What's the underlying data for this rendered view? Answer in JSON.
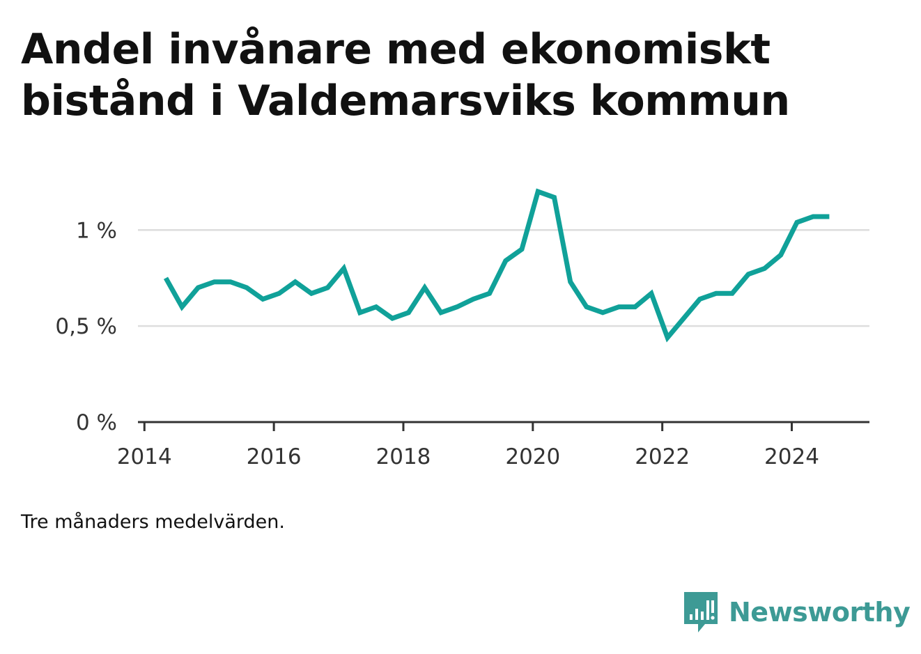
{
  "title": "Andel invånare med ekonomiskt bistånd i Valdemarsviks kommun",
  "note": "Tre månaders medelvärden.",
  "brand": {
    "name": "Newsworthy",
    "icon": "newsworthy-bar-chart-icon"
  },
  "colors": {
    "line": "#10a199",
    "grid": "#dddddd",
    "axis": "#333333",
    "brand": "#3d9a95"
  },
  "chart_data": {
    "type": "line",
    "title": "Andel invånare med ekonomiskt bistånd i Valdemarsviks kommun",
    "xlabel": "",
    "ylabel": "",
    "xlim": [
      2013.9,
      2025.2
    ],
    "ylim": [
      0,
      1.4
    ],
    "x_ticks": [
      2014,
      2016,
      2018,
      2020,
      2022,
      2024
    ],
    "x_tick_labels": [
      "2014",
      "2016",
      "2018",
      "2020",
      "2022",
      "2024"
    ],
    "y_ticks": [
      0,
      0.5,
      1
    ],
    "y_tick_labels": [
      "0 %",
      "0,5 %",
      "1 %"
    ],
    "grid": true,
    "series": [
      {
        "x": [
          2014.33,
          2014.58,
          2014.83,
          2015.08,
          2015.33,
          2015.58,
          2015.83,
          2016.08,
          2016.33,
          2016.58,
          2016.83,
          2017.08,
          2017.33,
          2017.58,
          2017.83,
          2018.08,
          2018.33,
          2018.58,
          2018.83,
          2019.08,
          2019.33,
          2019.58,
          2019.83,
          2020.08,
          2020.33,
          2020.58,
          2020.83,
          2021.08,
          2021.33,
          2021.58,
          2021.83,
          2022.08,
          2022.33,
          2022.58,
          2022.83,
          2023.08,
          2023.33,
          2023.58,
          2023.83,
          2024.08,
          2024.33,
          2024.58
        ],
        "values": [
          0.75,
          0.6,
          0.7,
          0.73,
          0.73,
          0.7,
          0.64,
          0.67,
          0.73,
          0.67,
          0.7,
          0.8,
          0.57,
          0.6,
          0.54,
          0.57,
          0.7,
          0.57,
          0.6,
          0.64,
          0.67,
          0.84,
          0.9,
          1.2,
          1.17,
          0.73,
          0.6,
          0.57,
          0.6,
          0.6,
          0.67,
          0.44,
          0.54,
          0.64,
          0.67,
          0.67,
          0.77,
          0.8,
          0.87,
          1.04,
          1.07,
          1.07
        ]
      }
    ]
  }
}
